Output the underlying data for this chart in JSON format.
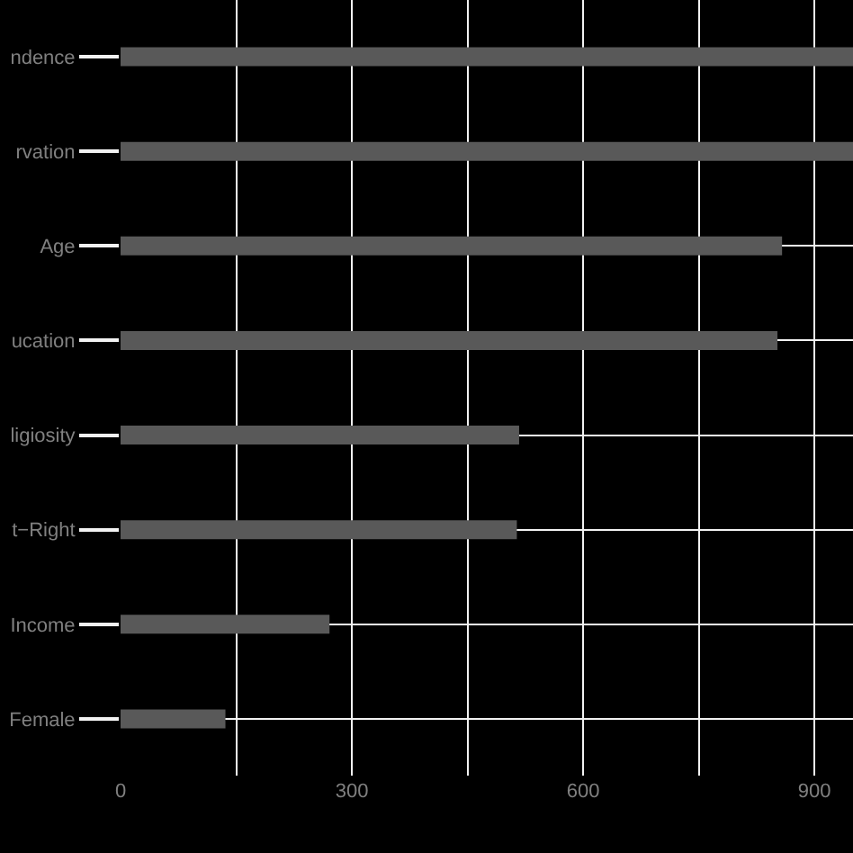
{
  "chart_data": {
    "type": "bar",
    "orientation": "horizontal",
    "categories": [
      "ndence",
      "rvation",
      "Age",
      "ucation",
      "ligiosity",
      "t−Right",
      "Income",
      "Female"
    ],
    "values": [
      950,
      950,
      858,
      852,
      517,
      514,
      271,
      136
    ],
    "color": "#595959",
    "xlim": [
      0,
      950
    ],
    "xticks": [
      0,
      {
        "value": 150,
        "label": null
      },
      300,
      {
        "value": 450,
        "label": null
      },
      600,
      {
        "value": 750,
        "label": null
      },
      900
    ],
    "grid": true
  }
}
